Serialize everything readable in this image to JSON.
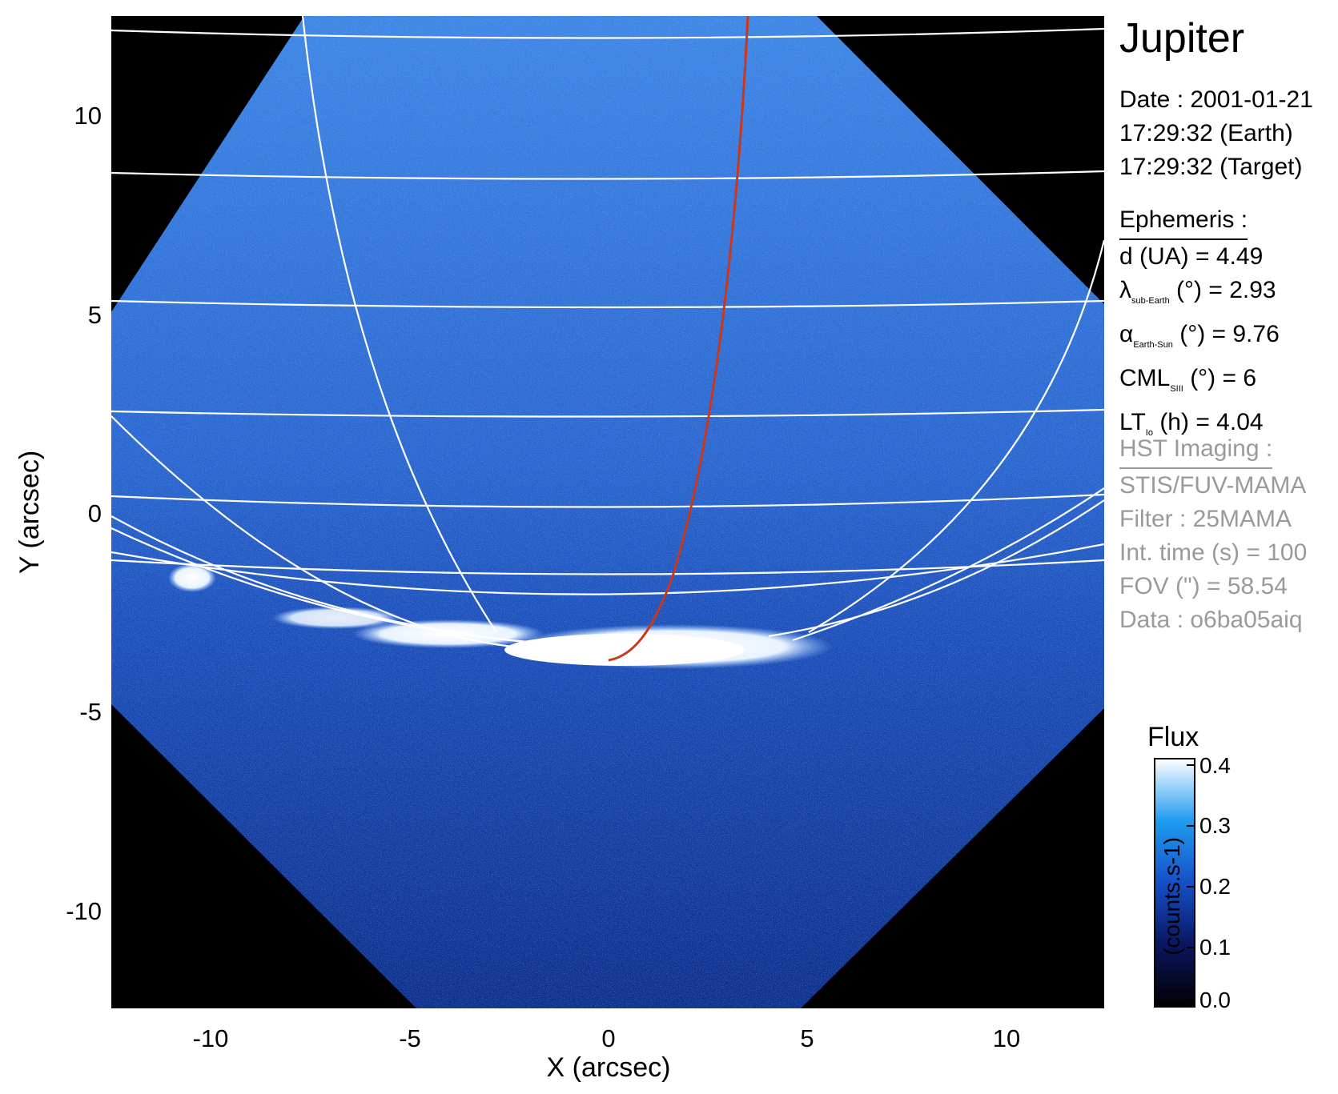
{
  "title": "Jupiter",
  "date": {
    "date_line": "Date : 2001-01-21",
    "earth_line": "17:29:32 (Earth)",
    "target_line": "17:29:32 (Target)"
  },
  "ephemeris": {
    "header": "Ephemeris :",
    "d": "d (UA)    = 4.49",
    "lambda_sym": "λ",
    "lambda_sub": "sub-Earth",
    "lambda_rest": " (°) = 2.93",
    "alpha_sym": "α",
    "alpha_sub": "Earth-Sun",
    "alpha_rest": " (°) = 9.76",
    "cml_main": "CML",
    "cml_sub": "SIII",
    "cml_rest": " (°) = 6",
    "lt_main": "LT",
    "lt_sub": "Io",
    "lt_rest": " (h) = 4.04"
  },
  "hst": {
    "header": "HST Imaging :",
    "instrument": "STIS/FUV-MAMA",
    "filter": "Filter : 25MAMA",
    "int_time": "Int. time (s) = 100",
    "fov": "FOV (\") = 58.54",
    "data": "Data : o6ba05aiq"
  },
  "axes": {
    "xlabel": "X (arcsec)",
    "ylabel": "Y (arcsec)",
    "xticks": [
      "-10",
      "-5",
      "0",
      "5",
      "10"
    ],
    "yticks": [
      "10",
      "5",
      "0",
      "-5",
      "-10"
    ],
    "xlim": [
      -12.5,
      12.5
    ],
    "ylim": [
      -12.5,
      12.5
    ]
  },
  "colorbar": {
    "title": "Flux",
    "unit": "(counts.s-1)",
    "ticks": [
      "0.4",
      "0.3",
      "0.2",
      "0.1",
      "0.0"
    ],
    "range": [
      0.0,
      0.4
    ]
  },
  "colors": {
    "sky": "#000000",
    "disk": "#2f6fd6",
    "aurora": "#ffffff",
    "grid": "#ffffff",
    "io_footprint": "#c8381c"
  }
}
